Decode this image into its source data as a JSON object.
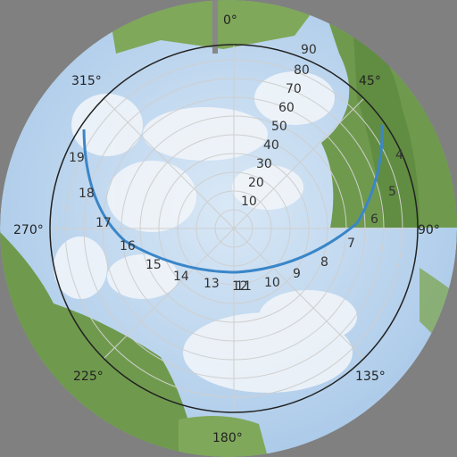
{
  "image": {
    "description_free": true,
    "width": 512,
    "height": 512,
    "colors": {
      "background": "#808080",
      "sky": "#bcd6ee",
      "cloud": "#f3f6f9",
      "foliage": "#6f9a4e",
      "grid": "#c8c8c8",
      "horizon_ring": "#222222",
      "sun_path": "#3a86c8"
    }
  },
  "directions": [
    {
      "key": "n",
      "label": "0°"
    },
    {
      "key": "ne",
      "label": "45°"
    },
    {
      "key": "e",
      "label": "90°"
    },
    {
      "key": "se",
      "label": "135°"
    },
    {
      "key": "s",
      "label": "180°"
    },
    {
      "key": "sw",
      "label": "225°"
    },
    {
      "key": "w",
      "label": "270°"
    },
    {
      "key": "nw",
      "label": "315°"
    }
  ],
  "zenith_labels": [
    "10",
    "20",
    "30",
    "40",
    "50",
    "60",
    "70",
    "80",
    "90"
  ],
  "sun_path": {
    "hour_labels": [
      "4",
      "5",
      "6",
      "7",
      "8",
      "9",
      "10",
      "11",
      "12",
      "13",
      "14",
      "15",
      "16",
      "17",
      "18",
      "19"
    ]
  }
}
